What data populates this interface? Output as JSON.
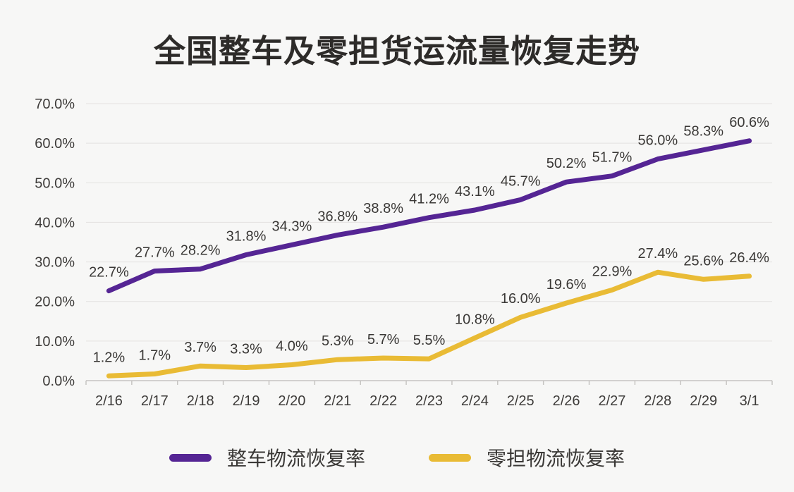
{
  "page": {
    "background": "#f7f7f6"
  },
  "title": "全国整车及零担货运流量恢复走势",
  "colors": {
    "grid": "#e4e2e0",
    "axis": "#c6c4c2",
    "tick_text": "#3d3b39",
    "label_text": "#3a3836",
    "title_text": "#2d2b29",
    "series_ftl": "#552594",
    "series_ltl": "#e9bb35"
  },
  "chart_data": {
    "type": "line",
    "title": "全国整车及零担货运流量恢复走势",
    "categories": [
      "2/16",
      "2/17",
      "2/18",
      "2/19",
      "2/20",
      "2/21",
      "2/22",
      "2/23",
      "2/24",
      "2/25",
      "2/26",
      "2/27",
      "2/28",
      "2/29",
      "3/1"
    ],
    "series": [
      {
        "name": "整车物流恢复率",
        "color": "#552594",
        "values": [
          22.7,
          27.7,
          28.2,
          31.8,
          34.3,
          36.8,
          38.8,
          41.2,
          43.1,
          45.7,
          50.2,
          51.7,
          56.0,
          58.3,
          60.6
        ]
      },
      {
        "name": "零担物流恢复率",
        "color": "#e9bb35",
        "values": [
          1.2,
          1.7,
          3.7,
          3.3,
          4.0,
          5.3,
          5.7,
          5.5,
          10.8,
          16.0,
          19.6,
          22.9,
          27.4,
          25.6,
          26.4
        ]
      }
    ],
    "y_ticks": [
      "0.0%",
      "10.0%",
      "20.0%",
      "30.0%",
      "40.0%",
      "50.0%",
      "60.0%",
      "70.0%"
    ],
    "ylim": [
      0,
      70
    ],
    "xlabel": "",
    "ylabel": "",
    "grid": true,
    "data_labels": true,
    "legend_position": "bottom"
  }
}
